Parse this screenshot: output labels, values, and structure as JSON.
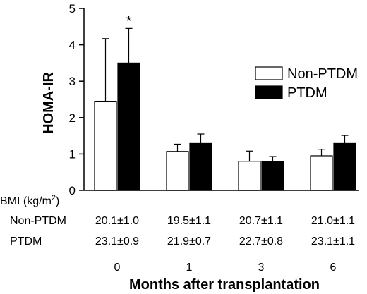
{
  "chart_data": {
    "type": "bar",
    "ylabel": "HOMA-IR",
    "xlabel": "Months after transplantation",
    "ylim": [
      0,
      5
    ],
    "yticks": [
      0,
      1,
      2,
      3,
      4,
      5
    ],
    "categories": [
      "0",
      "1",
      "3",
      "6"
    ],
    "legend_position": "right",
    "series": [
      {
        "name": "Non-PTDM",
        "fill": "#ffffff",
        "values": [
          2.45,
          1.07,
          0.8,
          0.95
        ],
        "errors": [
          1.72,
          0.2,
          0.28,
          0.18
        ]
      },
      {
        "name": "PTDM",
        "fill": "#000000",
        "values": [
          3.5,
          1.29,
          0.79,
          1.29
        ],
        "errors": [
          0.95,
          0.26,
          0.14,
          0.22
        ]
      }
    ],
    "annotations": [
      {
        "category": "0",
        "series": "PTDM",
        "text": "*"
      }
    ],
    "bmi_table": {
      "header": "BMI (kg/m",
      "header_sup": "2",
      "header_close": ")",
      "rows": [
        {
          "label": "Non-PTDM",
          "values": [
            "20.1±1.0",
            "19.5±1.1",
            "20.7±1.1",
            "21.0±1.1"
          ]
        },
        {
          "label": "PTDM",
          "values": [
            "23.1±0.9",
            "21.9±0.7",
            "22.7±0.8",
            "23.1±1.1"
          ]
        }
      ]
    }
  }
}
